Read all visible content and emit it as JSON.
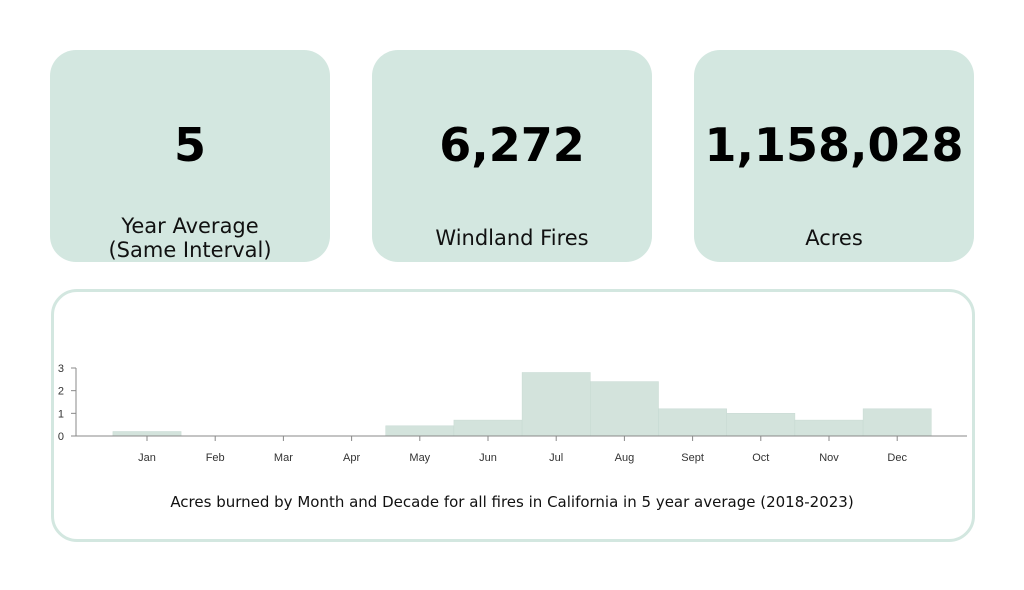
{
  "cards": [
    {
      "value": "5",
      "label_lines": [
        "Year Average",
        "(Same Interval)"
      ]
    },
    {
      "value": "6,272",
      "label_lines": [
        "Windland Fires"
      ]
    },
    {
      "value": "1,158,028",
      "label_lines": [
        "Acres"
      ]
    }
  ],
  "chart_caption": "Acres burned by Month and Decade for all fires in California in 5 year average (2018-2023)",
  "colors": {
    "card_bg": "#d3e7e0",
    "bar_fill": "#d3e3dc",
    "axis": "#888888"
  },
  "chart_data": {
    "type": "bar",
    "categories": [
      "Jan",
      "Feb",
      "Mar",
      "Apr",
      "May",
      "Jun",
      "Jul",
      "Aug",
      "Sept",
      "Oct",
      "Nov",
      "Dec"
    ],
    "values": [
      0.2,
      0,
      0,
      0,
      0.45,
      0.7,
      2.8,
      2.4,
      1.2,
      1.0,
      0.7,
      1.2
    ],
    "ylim": [
      0,
      3
    ],
    "yticks": [
      0,
      1,
      2,
      3
    ],
    "xlabel": "",
    "ylabel": "",
    "grid": false
  }
}
